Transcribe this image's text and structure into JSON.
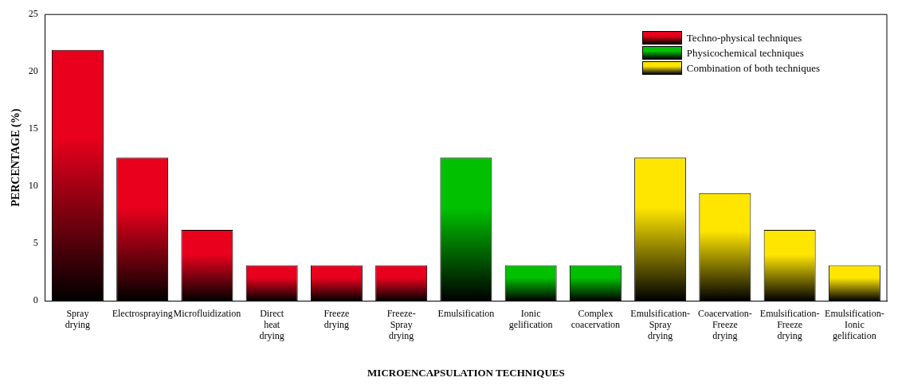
{
  "chart_data": {
    "type": "bar",
    "xlabel": "MICROENCAPSULATION TECHNIQUES",
    "ylabel": "PERCENTAGE (%)",
    "categories": [
      "Spray drying",
      "Electrospraying",
      "Microfluidization",
      "Direct heat drying",
      "Freeze drying",
      "Freeze-Spray drying",
      "Emulsification",
      "Ionic gelification",
      "Complex coacervation",
      "Emulsification-Spray drying",
      "Coacervation-Freeze drying",
      "Emulsification-Freeze drying",
      "Emulsification-Ionic gelification"
    ],
    "series": [
      {
        "name": "Techno-physical techniques",
        "color": "#e8001c",
        "values": [
          21.9,
          12.5,
          6.2,
          3.1,
          3.1,
          3.1,
          null,
          null,
          null,
          null,
          null,
          null,
          null
        ]
      },
      {
        "name": "Physicochemical techniques",
        "color": "#00c000",
        "values": [
          null,
          null,
          null,
          null,
          null,
          null,
          12.5,
          3.1,
          3.1,
          null,
          null,
          null,
          null
        ]
      },
      {
        "name": "Combination of both techniques",
        "color": "#ffe600",
        "values": [
          null,
          null,
          null,
          null,
          null,
          null,
          null,
          null,
          null,
          12.5,
          9.4,
          6.2,
          3.1
        ]
      }
    ],
    "ylim": [
      0,
      25
    ],
    "yticks": [
      0,
      5,
      10,
      15,
      20,
      25
    ],
    "grid": false,
    "legend": "top right"
  }
}
